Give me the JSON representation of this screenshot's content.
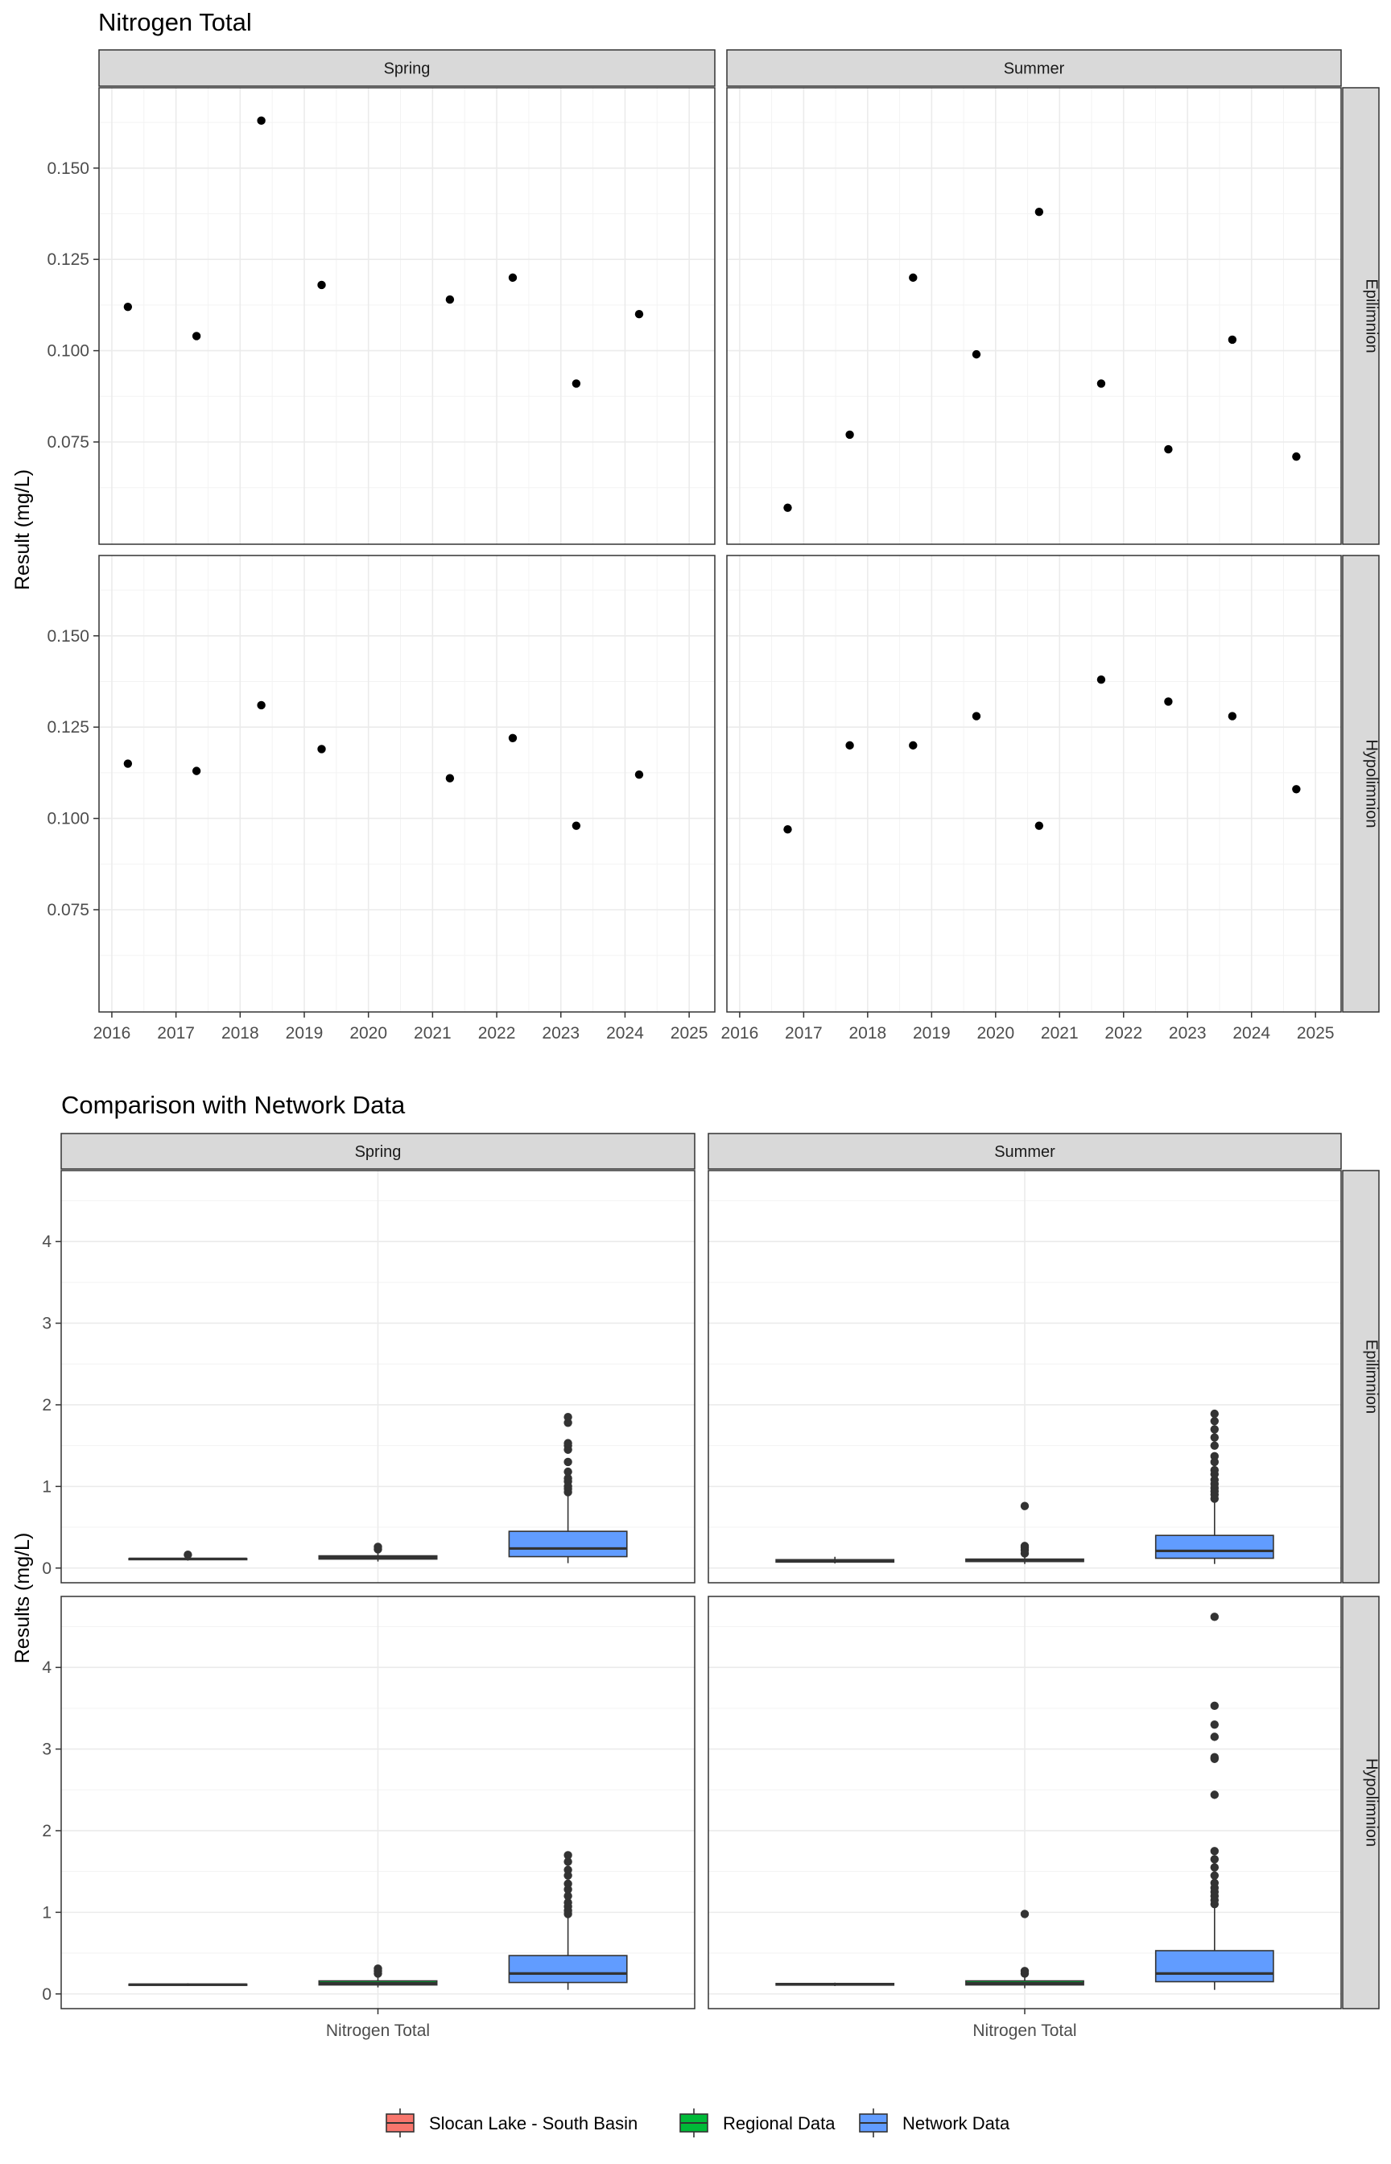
{
  "figure": {
    "upper_title": "Nitrogen Total",
    "lower_title": "Comparison with Network Data",
    "upper_ylabel": "Result (mg/L)",
    "lower_ylabel": "Results (mg/L)",
    "lower_xlabel": "Nitrogen Total",
    "seasons": [
      "Spring",
      "Summer"
    ],
    "layers": [
      "Epilimnion",
      "Hypolimnion"
    ]
  },
  "legend": {
    "placement": "bottom",
    "entries": [
      {
        "label": "Slocan Lake - South Basin",
        "color": "#F8766D"
      },
      {
        "label": "Regional Data",
        "color": "#00BA38"
      },
      {
        "label": "Network Data",
        "color": "#619CFF"
      }
    ]
  },
  "chart_data": [
    {
      "type": "scatter",
      "title": "Nitrogen Total",
      "ylabel": "Result (mg/L)",
      "xlim": [
        2015.8,
        2025.4
      ],
      "ylim": [
        0.047,
        0.172
      ],
      "x_ticks": [
        2016,
        2017,
        2018,
        2019,
        2020,
        2021,
        2022,
        2023,
        2024,
        2025
      ],
      "y_ticks": [
        0.075,
        0.1,
        0.125,
        0.15
      ],
      "y_tick_labels": [
        "0.075",
        "0.100",
        "0.125",
        "0.150"
      ],
      "grid": true,
      "panels": [
        {
          "season": "Spring",
          "layer": "Epilimnion",
          "points": [
            [
              2016.25,
              0.112
            ],
            [
              2017.32,
              0.104
            ],
            [
              2018.33,
              0.163
            ],
            [
              2019.27,
              0.118
            ],
            [
              2021.27,
              0.114
            ],
            [
              2022.25,
              0.12
            ],
            [
              2023.24,
              0.091
            ],
            [
              2024.22,
              0.11
            ]
          ]
        },
        {
          "season": "Summer",
          "layer": "Epilimnion",
          "points": [
            [
              2016.75,
              0.057
            ],
            [
              2017.72,
              0.077
            ],
            [
              2018.71,
              0.12
            ],
            [
              2019.7,
              0.099
            ],
            [
              2020.68,
              0.138
            ],
            [
              2021.65,
              0.091
            ],
            [
              2022.7,
              0.073
            ],
            [
              2023.7,
              0.103
            ],
            [
              2024.7,
              0.071
            ]
          ]
        },
        {
          "season": "Spring",
          "layer": "Hypolimnion",
          "points": [
            [
              2016.25,
              0.115
            ],
            [
              2017.32,
              0.113
            ],
            [
              2018.33,
              0.131
            ],
            [
              2019.27,
              0.119
            ],
            [
              2021.27,
              0.111
            ],
            [
              2022.25,
              0.122
            ],
            [
              2023.24,
              0.098
            ],
            [
              2024.22,
              0.112
            ]
          ]
        },
        {
          "season": "Summer",
          "layer": "Hypolimnion",
          "points": [
            [
              2016.75,
              0.097
            ],
            [
              2017.72,
              0.12
            ],
            [
              2018.71,
              0.12
            ],
            [
              2019.7,
              0.128
            ],
            [
              2020.68,
              0.098
            ],
            [
              2021.65,
              0.138
            ],
            [
              2022.7,
              0.132
            ],
            [
              2023.7,
              0.128
            ],
            [
              2024.7,
              0.108
            ]
          ]
        }
      ]
    },
    {
      "type": "box",
      "title": "Comparison with Network Data",
      "ylabel": "Results (mg/L)",
      "xlabel": "Nitrogen Total",
      "ylim": [
        -0.18,
        4.87
      ],
      "y_ticks": [
        0,
        1,
        2,
        3,
        4
      ],
      "y_tick_labels": [
        "0",
        "1",
        "2",
        "3",
        "4"
      ],
      "groups": [
        "Slocan Lake - South Basin",
        "Regional Data",
        "Network Data"
      ],
      "colors": [
        "#F8766D",
        "#00BA38",
        "#619CFF"
      ],
      "grid": true,
      "panels": [
        {
          "season": "Spring",
          "layer": "Epilimnion",
          "boxes": [
            {
              "group": "Slocan Lake - South Basin",
              "whisker_low": 0.091,
              "q1": 0.104,
              "median": 0.112,
              "q3": 0.117,
              "whisker_high": 0.12,
              "outliers": [
                0.163
              ]
            },
            {
              "group": "Regional Data",
              "whisker_low": 0.08,
              "q1": 0.11,
              "median": 0.13,
              "q3": 0.15,
              "whisker_high": 0.19,
              "outliers": [
                0.23,
                0.26
              ]
            },
            {
              "group": "Network Data",
              "whisker_low": 0.06,
              "q1": 0.14,
              "median": 0.24,
              "q3": 0.45,
              "whisker_high": 0.9,
              "outliers": [
                0.93,
                0.97,
                1.0,
                1.06,
                1.1,
                1.18,
                1.3,
                1.45,
                1.5,
                1.53,
                1.78,
                1.85
              ]
            }
          ]
        },
        {
          "season": "Summer",
          "layer": "Epilimnion",
          "boxes": [
            {
              "group": "Slocan Lake - South Basin",
              "whisker_low": 0.057,
              "q1": 0.073,
              "median": 0.091,
              "q3": 0.103,
              "whisker_high": 0.138,
              "outliers": []
            },
            {
              "group": "Regional Data",
              "whisker_low": 0.05,
              "q1": 0.08,
              "median": 0.09,
              "q3": 0.11,
              "whisker_high": 0.15,
              "outliers": [
                0.18,
                0.22,
                0.25,
                0.27,
                0.76
              ]
            },
            {
              "group": "Network Data",
              "whisker_low": 0.05,
              "q1": 0.12,
              "median": 0.21,
              "q3": 0.4,
              "whisker_high": 0.82,
              "outliers": [
                0.85,
                0.9,
                0.94,
                0.98,
                1.03,
                1.08,
                1.15,
                1.2,
                1.3,
                1.37,
                1.5,
                1.6,
                1.7,
                1.8,
                1.89
              ]
            }
          ]
        },
        {
          "season": "Spring",
          "layer": "Hypolimnion",
          "boxes": [
            {
              "group": "Slocan Lake - South Basin",
              "whisker_low": 0.098,
              "q1": 0.111,
              "median": 0.114,
              "q3": 0.12,
              "whisker_high": 0.131,
              "outliers": []
            },
            {
              "group": "Regional Data",
              "whisker_low": 0.08,
              "q1": 0.11,
              "median": 0.13,
              "q3": 0.16,
              "whisker_high": 0.21,
              "outliers": [
                0.25,
                0.28,
                0.31
              ]
            },
            {
              "group": "Network Data",
              "whisker_low": 0.05,
              "q1": 0.14,
              "median": 0.25,
              "q3": 0.47,
              "whisker_high": 0.95,
              "outliers": [
                0.98,
                1.02,
                1.07,
                1.12,
                1.2,
                1.28,
                1.35,
                1.45,
                1.52,
                1.62,
                1.7
              ]
            }
          ]
        },
        {
          "season": "Summer",
          "layer": "Hypolimnion",
          "boxes": [
            {
              "group": "Slocan Lake - South Basin",
              "whisker_low": 0.097,
              "q1": 0.108,
              "median": 0.12,
              "q3": 0.128,
              "whisker_high": 0.138,
              "outliers": []
            },
            {
              "group": "Regional Data",
              "whisker_low": 0.07,
              "q1": 0.11,
              "median": 0.13,
              "q3": 0.16,
              "whisker_high": 0.2,
              "outliers": [
                0.25,
                0.28,
                0.98
              ]
            },
            {
              "group": "Network Data",
              "whisker_low": 0.05,
              "q1": 0.15,
              "median": 0.25,
              "q3": 0.53,
              "whisker_high": 1.08,
              "outliers": [
                1.1,
                1.15,
                1.2,
                1.25,
                1.3,
                1.36,
                1.45,
                1.55,
                1.65,
                1.75,
                2.44,
                2.88,
                2.9,
                3.15,
                3.3,
                3.53,
                4.62
              ]
            }
          ]
        }
      ]
    }
  ]
}
